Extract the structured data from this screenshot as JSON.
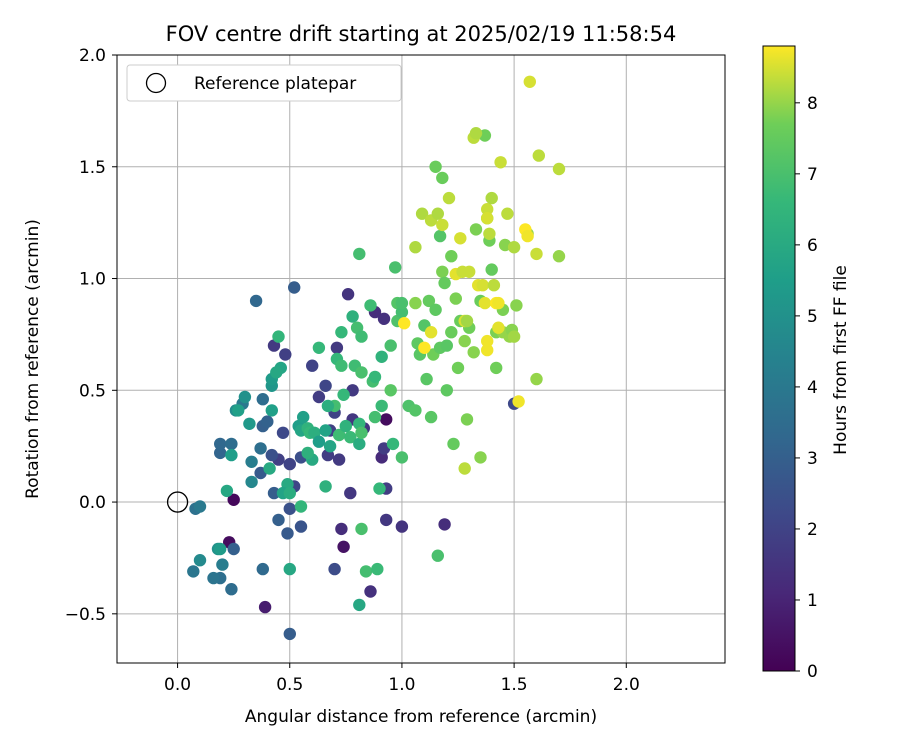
{
  "chart_data": {
    "type": "scatter",
    "title": "FOV centre drift starting at 2025/02/19 11:58:54",
    "xlabel": "Angular distance from reference (arcmin)",
    "ylabel": "Rotation from reference (arcmin)",
    "xlim": [
      -0.27,
      2.44
    ],
    "ylim": [
      -0.72,
      2.0
    ],
    "xticks": [
      0.0,
      0.5,
      1.0,
      1.5,
      2.0
    ],
    "xtick_labels": [
      "0.0",
      "0.5",
      "1.0",
      "1.5",
      "2.0"
    ],
    "yticks": [
      -0.5,
      0.0,
      0.5,
      1.0,
      1.5,
      2.0
    ],
    "ytick_labels": [
      "−0.5",
      "0.0",
      "0.5",
      "1.0",
      "1.5",
      "2.0"
    ],
    "grid": true,
    "legend": {
      "placement": "top-left",
      "entries": [
        "Reference platepar"
      ]
    },
    "reference_point": {
      "name": "Reference platepar",
      "x": 0.0,
      "y": 0.0,
      "marker": "open circle"
    },
    "colorbar": {
      "label": "Hours from first FF file",
      "colormap": "viridis",
      "range": [
        0,
        8.8
      ],
      "ticks": [
        0,
        1,
        2,
        3,
        4,
        5,
        6,
        7,
        8
      ],
      "tick_labels": [
        "0",
        "1",
        "2",
        "3",
        "4",
        "5",
        "6",
        "7",
        "8"
      ]
    },
    "series": [
      {
        "columns": [
          "x",
          "y",
          "hours"
        ],
        "points": [
          [
            0.25,
            0.01,
            0.2
          ],
          [
            0.23,
            -0.18,
            0.3
          ],
          [
            0.39,
            -0.47,
            0.8
          ],
          [
            0.74,
            -0.2,
            0.5
          ],
          [
            0.93,
            0.37,
            0.3
          ],
          [
            0.93,
            -0.08,
            1.6
          ],
          [
            1.0,
            -0.11,
            1.5
          ],
          [
            1.19,
            -0.1,
            1.3
          ],
          [
            0.77,
            0.04,
            1.6
          ],
          [
            0.86,
            -0.4,
            1.4
          ],
          [
            0.91,
            0.2,
            1.2
          ],
          [
            0.92,
            0.24,
            1.8
          ],
          [
            0.76,
            0.93,
            1.5
          ],
          [
            0.92,
            0.82,
            1.4
          ],
          [
            0.88,
            0.85,
            1.3
          ],
          [
            0.71,
            0.69,
            1.7
          ],
          [
            0.78,
            0.37,
            1.6
          ],
          [
            0.72,
            0.19,
            1.7
          ],
          [
            0.67,
            0.21,
            1.8
          ],
          [
            0.68,
            0.32,
            1.9
          ],
          [
            0.7,
            0.4,
            2.0
          ],
          [
            0.63,
            0.47,
            1.8
          ],
          [
            0.6,
            0.61,
            2.0
          ],
          [
            0.66,
            0.52,
            2.1
          ],
          [
            0.5,
            0.17,
            2.0
          ],
          [
            0.45,
            0.19,
            1.9
          ],
          [
            0.52,
            0.07,
            2.1
          ],
          [
            0.55,
            0.2,
            2.4
          ],
          [
            0.43,
            0.7,
            1.7
          ],
          [
            0.48,
            0.66,
            1.9
          ],
          [
            0.83,
            0.33,
            1.5
          ],
          [
            0.78,
            0.5,
            1.7
          ],
          [
            0.73,
            -0.12,
            1.3
          ],
          [
            0.7,
            -0.3,
            2.3
          ],
          [
            0.93,
            0.06,
            1.8
          ],
          [
            0.47,
            0.31,
            2.2
          ],
          [
            0.42,
            0.21,
            2.5
          ],
          [
            0.5,
            -0.03,
            2.5
          ],
          [
            0.55,
            -0.11,
            2.6
          ],
          [
            0.49,
            -0.14,
            2.8
          ],
          [
            0.52,
            0.96,
            2.9
          ],
          [
            0.35,
            0.9,
            3.3
          ],
          [
            0.37,
            0.13,
            2.8
          ],
          [
            0.43,
            0.04,
            2.9
          ],
          [
            0.45,
            -0.08,
            3.0
          ],
          [
            0.38,
            0.34,
            3.0
          ],
          [
            0.38,
            0.46,
            3.5
          ],
          [
            0.4,
            0.36,
            3.1
          ],
          [
            0.5,
            -0.59,
            2.9
          ],
          [
            0.38,
            -0.3,
            3.4
          ],
          [
            0.24,
            -0.39,
            3.5
          ],
          [
            0.19,
            -0.34,
            3.6
          ],
          [
            0.16,
            -0.34,
            3.8
          ],
          [
            0.07,
            -0.31,
            3.9
          ],
          [
            0.08,
            -0.03,
            3.7
          ],
          [
            0.1,
            -0.02,
            4.0
          ],
          [
            0.19,
            0.22,
            3.2
          ],
          [
            0.19,
            0.26,
            3.3
          ],
          [
            0.24,
            0.26,
            3.5
          ],
          [
            0.25,
            -0.21,
            3.0
          ],
          [
            0.2,
            -0.28,
            4.2
          ],
          [
            0.1,
            -0.26,
            4.7
          ],
          [
            0.18,
            -0.21,
            5.0
          ],
          [
            0.19,
            -0.21,
            5.4
          ],
          [
            0.29,
            0.44,
            4.0
          ],
          [
            0.26,
            0.41,
            4.8
          ],
          [
            0.32,
            0.35,
            5.3
          ],
          [
            0.33,
            0.09,
            4.6
          ],
          [
            0.27,
            0.41,
            5.6
          ],
          [
            0.24,
            0.21,
            5.5
          ],
          [
            0.41,
            0.15,
            6.0
          ],
          [
            0.42,
            0.52,
            5.2
          ],
          [
            0.42,
            0.55,
            5.4
          ],
          [
            0.42,
            0.41,
            5.6
          ],
          [
            0.46,
            0.6,
            5.8
          ],
          [
            0.45,
            0.74,
            6.5
          ],
          [
            0.49,
            0.08,
            6.0
          ],
          [
            0.47,
            0.04,
            5.7
          ],
          [
            0.5,
            0.04,
            6.1
          ],
          [
            0.5,
            -0.3,
            5.9
          ],
          [
            0.22,
            0.05,
            5.9
          ],
          [
            0.54,
            0.34,
            5.5
          ],
          [
            0.55,
            0.32,
            5.8
          ],
          [
            0.55,
            -0.02,
            6.5
          ],
          [
            0.58,
            0.33,
            6.4
          ],
          [
            0.59,
            0.31,
            6.6
          ],
          [
            0.6,
            0.19,
            6.0
          ],
          [
            0.61,
            0.31,
            6.2
          ],
          [
            0.63,
            0.69,
            6.6
          ],
          [
            0.66,
            0.07,
            6.3
          ],
          [
            0.66,
            0.32,
            5.7
          ],
          [
            0.68,
            0.25,
            5.8
          ],
          [
            0.7,
            0.43,
            6.9
          ],
          [
            0.71,
            0.64,
            6.6
          ],
          [
            0.72,
            0.3,
            6.8
          ],
          [
            0.73,
            0.61,
            6.8
          ],
          [
            0.74,
            0.48,
            6.6
          ],
          [
            0.75,
            0.34,
            6.4
          ],
          [
            0.77,
            0.29,
            6.7
          ],
          [
            0.78,
            0.83,
            6.3
          ],
          [
            0.79,
            0.61,
            6.8
          ],
          [
            0.8,
            0.78,
            6.9
          ],
          [
            0.81,
            0.35,
            6.5
          ],
          [
            0.81,
            0.26,
            6.1
          ],
          [
            0.82,
            0.74,
            6.8
          ],
          [
            0.81,
            -0.46,
            5.9
          ],
          [
            0.81,
            1.11,
            6.9
          ],
          [
            0.82,
            0.58,
            7.0
          ],
          [
            0.82,
            0.31,
            7.0
          ],
          [
            0.82,
            -0.12,
            7.0
          ],
          [
            0.84,
            -0.31,
            6.9
          ],
          [
            0.86,
            0.88,
            6.8
          ],
          [
            0.87,
            0.54,
            6.9
          ],
          [
            0.88,
            0.56,
            6.6
          ],
          [
            0.89,
            -0.3,
            6.7
          ],
          [
            0.9,
            0.06,
            6.6
          ],
          [
            0.91,
            0.43,
            6.7
          ],
          [
            0.91,
            0.65,
            6.4
          ],
          [
            0.95,
            0.5,
            7.3
          ],
          [
            0.96,
            0.26,
            6.6
          ],
          [
            0.97,
            1.05,
            7.0
          ],
          [
            0.98,
            0.89,
            7.2
          ],
          [
            0.98,
            0.81,
            7.1
          ],
          [
            1.0,
            0.85,
            6.9
          ],
          [
            1.0,
            0.89,
            7.0
          ],
          [
            1.0,
            0.2,
            7.0
          ],
          [
            1.03,
            0.43,
            7.1
          ],
          [
            1.06,
            0.41,
            7.2
          ],
          [
            1.07,
            0.71,
            7.4
          ],
          [
            1.08,
            0.66,
            7.3
          ],
          [
            1.1,
            0.79,
            7.2
          ],
          [
            1.11,
            0.55,
            7.3
          ],
          [
            1.12,
            0.9,
            7.5
          ],
          [
            1.13,
            0.38,
            7.3
          ],
          [
            1.14,
            0.66,
            7.7
          ],
          [
            1.15,
            0.86,
            7.4
          ],
          [
            1.15,
            1.5,
            7.6
          ],
          [
            1.16,
            -0.24,
            7.0
          ],
          [
            1.17,
            0.69,
            7.4
          ],
          [
            1.17,
            1.19,
            7.2
          ],
          [
            1.18,
            1.45,
            7.6
          ],
          [
            1.18,
            1.03,
            7.8
          ],
          [
            1.19,
            0.98,
            7.5
          ],
          [
            1.2,
            0.5,
            7.4
          ],
          [
            1.22,
            0.76,
            7.6
          ],
          [
            1.22,
            1.1,
            7.7
          ],
          [
            1.23,
            0.26,
            7.5
          ],
          [
            1.24,
            0.91,
            7.8
          ],
          [
            1.25,
            0.6,
            7.7
          ],
          [
            1.26,
            0.81,
            7.6
          ],
          [
            1.28,
            0.72,
            7.9
          ],
          [
            1.29,
            0.37,
            7.8
          ],
          [
            1.3,
            0.78,
            7.7
          ],
          [
            1.32,
            0.67,
            7.9
          ],
          [
            1.33,
            1.22,
            7.8
          ],
          [
            1.35,
            0.9,
            7.6
          ],
          [
            1.35,
            0.2,
            7.9
          ],
          [
            1.37,
            1.64,
            7.7
          ],
          [
            1.38,
            1.27,
            7.7
          ],
          [
            1.39,
            1.17,
            7.7
          ],
          [
            1.4,
            1.04,
            7.5
          ],
          [
            1.42,
            0.76,
            7.8
          ],
          [
            1.42,
            0.6,
            7.7
          ],
          [
            1.45,
            0.86,
            7.8
          ],
          [
            1.45,
            0.76,
            8.0
          ],
          [
            1.46,
            1.15,
            7.9
          ],
          [
            1.48,
            0.74,
            8.0
          ],
          [
            1.51,
            0.88,
            7.9
          ],
          [
            1.56,
            1.2,
            8.0
          ],
          [
            1.5,
            0.44,
            2.2
          ],
          [
            1.6,
            0.55,
            8.0
          ],
          [
            1.7,
            1.1,
            8.0
          ],
          [
            1.09,
            1.29,
            8.2
          ],
          [
            1.13,
            1.26,
            8.3
          ],
          [
            1.16,
            1.29,
            8.2
          ],
          [
            1.18,
            1.24,
            8.4
          ],
          [
            1.21,
            1.36,
            8.3
          ],
          [
            1.24,
            1.02,
            8.6
          ],
          [
            1.26,
            1.18,
            8.5
          ],
          [
            1.27,
            1.03,
            8.4
          ],
          [
            1.28,
            0.81,
            8.5
          ],
          [
            1.29,
            0.81,
            8.1
          ],
          [
            1.3,
            1.03,
            8.4
          ],
          [
            1.32,
            1.63,
            8.3
          ],
          [
            1.33,
            1.65,
            8.2
          ],
          [
            1.34,
            0.97,
            8.6
          ],
          [
            1.36,
            0.97,
            8.5
          ],
          [
            1.37,
            0.89,
            8.6
          ],
          [
            1.38,
            0.72,
            8.7
          ],
          [
            1.38,
            0.68,
            8.7
          ],
          [
            1.38,
            1.31,
            8.4
          ],
          [
            1.38,
            1.27,
            8.5
          ],
          [
            1.39,
            1.2,
            8.3
          ],
          [
            1.4,
            1.36,
            8.2
          ],
          [
            1.41,
            0.97,
            8.3
          ],
          [
            1.42,
            0.89,
            8.8
          ],
          [
            1.43,
            0.89,
            8.7
          ],
          [
            1.43,
            0.78,
            8.6
          ],
          [
            1.44,
            1.52,
            8.4
          ],
          [
            1.47,
            1.29,
            8.3
          ],
          [
            1.5,
            1.14,
            8.2
          ],
          [
            1.52,
            0.45,
            8.7
          ],
          [
            1.55,
            1.22,
            8.8
          ],
          [
            1.56,
            1.19,
            8.7
          ],
          [
            1.57,
            1.88,
            8.5
          ],
          [
            1.6,
            1.11,
            8.4
          ],
          [
            1.61,
            1.55,
            8.3
          ],
          [
            1.7,
            1.49,
            8.3
          ],
          [
            1.1,
            0.69,
            8.8
          ],
          [
            1.13,
            0.76,
            8.6
          ],
          [
            1.28,
            0.15,
            8.3
          ],
          [
            1.06,
            1.14,
            8.2
          ],
          [
            1.01,
            0.8,
            8.8
          ],
          [
            1.49,
            0.77,
            7.9
          ],
          [
            1.5,
            0.74,
            8.1
          ],
          [
            1.06,
            0.89,
            7.9
          ],
          [
            1.2,
            0.7,
            7.3
          ],
          [
            0.95,
            0.7,
            7.0
          ],
          [
            0.73,
            0.76,
            6.6
          ],
          [
            0.88,
            0.38,
            6.9
          ],
          [
            0.67,
            0.43,
            6.2
          ],
          [
            0.63,
            0.27,
            5.5
          ],
          [
            0.58,
            0.22,
            6.3
          ],
          [
            0.56,
            0.38,
            5.6
          ],
          [
            0.44,
            0.58,
            5.9
          ],
          [
            0.37,
            0.24,
            3.6
          ],
          [
            0.33,
            0.18,
            4.2
          ],
          [
            0.3,
            0.47,
            5.0
          ]
        ]
      }
    ]
  }
}
